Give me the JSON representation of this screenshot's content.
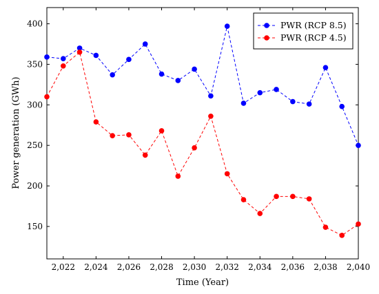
{
  "chart_data": {
    "type": "line",
    "title": "",
    "xlabel": "Time (Year)",
    "ylabel": "Power generation (GWh)",
    "xlim": [
      2021,
      2040
    ],
    "ylim": [
      110,
      420
    ],
    "xticks": [
      2022,
      2024,
      2026,
      2028,
      2030,
      2032,
      2034,
      2036,
      2038,
      2040
    ],
    "xtick_labels": [
      "2,022",
      "2,024",
      "2,026",
      "2,028",
      "2,030",
      "2,032",
      "2,034",
      "2,036",
      "2,038",
      "2,040"
    ],
    "yticks": [
      150,
      200,
      250,
      300,
      350,
      400
    ],
    "ytick_labels": [
      "150",
      "200",
      "250",
      "300",
      "350",
      "400"
    ],
    "grid": false,
    "legend_position": "top-right",
    "x": [
      2021,
      2022,
      2023,
      2024,
      2025,
      2026,
      2027,
      2028,
      2029,
      2030,
      2031,
      2032,
      2033,
      2034,
      2035,
      2036,
      2037,
      2038,
      2039,
      2040
    ],
    "series": [
      {
        "name": "PWR (RCP 8.5)",
        "color": "#0000ff",
        "line_style": "dashed",
        "marker": "circle",
        "values": [
          359,
          357,
          370,
          361,
          337,
          356,
          375,
          338,
          330,
          344,
          311,
          397,
          302,
          315,
          319,
          304,
          301,
          346,
          298,
          250
        ]
      },
      {
        "name": "PWR (RCP 4.5)",
        "color": "#ff0000",
        "line_style": "dashed",
        "marker": "circle",
        "values": [
          310,
          348,
          365,
          279,
          262,
          263,
          238,
          268,
          212,
          247,
          286,
          215,
          183,
          166,
          187,
          187,
          184,
          149,
          139,
          153
        ]
      }
    ]
  }
}
